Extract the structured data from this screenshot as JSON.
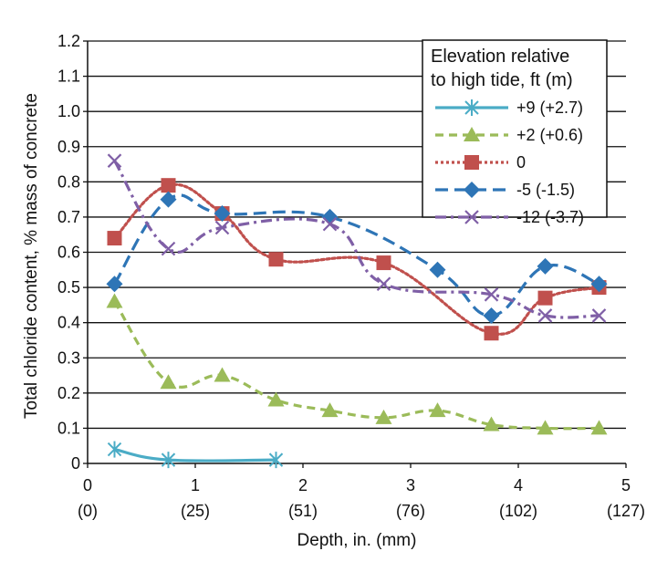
{
  "chart_data": {
    "type": "line",
    "title": "",
    "xlabel": "Depth, in. (mm)",
    "ylabel": "Total chloride content, % mass of concrete",
    "xlim": [
      0,
      5
    ],
    "ylim": [
      0,
      1.2
    ],
    "grid": "horizontal",
    "x_ticks": [
      {
        "value": 0,
        "label": "0",
        "sublabel": "(0)"
      },
      {
        "value": 1,
        "label": "1",
        "sublabel": "(25)"
      },
      {
        "value": 2,
        "label": "2",
        "sublabel": "(51)"
      },
      {
        "value": 3,
        "label": "3",
        "sublabel": "(76)"
      },
      {
        "value": 4,
        "label": "4",
        "sublabel": "(102)"
      },
      {
        "value": 5,
        "label": "5",
        "sublabel": "(127)"
      }
    ],
    "y_ticks": [
      {
        "value": 0,
        "label": "0"
      },
      {
        "value": 0.1,
        "label": "0.1"
      },
      {
        "value": 0.2,
        "label": "0.2"
      },
      {
        "value": 0.3,
        "label": "0.3"
      },
      {
        "value": 0.4,
        "label": "0.4"
      },
      {
        "value": 0.5,
        "label": "0.5"
      },
      {
        "value": 0.6,
        "label": "0.6"
      },
      {
        "value": 0.7,
        "label": "0.7"
      },
      {
        "value": 0.8,
        "label": "0.8"
      },
      {
        "value": 0.9,
        "label": "0.9"
      },
      {
        "value": 1.0,
        "label": "1.0"
      },
      {
        "value": 1.1,
        "label": "1.1"
      },
      {
        "value": 1.2,
        "label": "1.2"
      }
    ],
    "legend": {
      "title_line1": "Elevation relative",
      "title_line2": "to high tide, ft (m)",
      "placement": "top-right"
    },
    "series": [
      {
        "name": "+9 (+2.7)",
        "color": "#4bacc6",
        "dash": "solid",
        "marker": "asterisk",
        "x": [
          0.25,
          0.75,
          1.75
        ],
        "y": [
          0.04,
          0.01,
          0.01
        ]
      },
      {
        "name": "+2 (+0.6)",
        "color": "#9bbb59",
        "dash": "dashed",
        "marker": "triangle",
        "x": [
          0.25,
          0.75,
          1.25,
          1.75,
          2.25,
          2.75,
          3.25,
          3.75,
          4.25,
          4.75
        ],
        "y": [
          0.46,
          0.23,
          0.25,
          0.18,
          0.15,
          0.13,
          0.15,
          0.11,
          0.1,
          0.1
        ]
      },
      {
        "name": "0",
        "color": "#c0504d",
        "dash": "dotted",
        "marker": "square",
        "x": [
          0.25,
          0.75,
          1.25,
          1.75,
          2.75,
          3.75,
          4.25,
          4.75
        ],
        "y": [
          0.64,
          0.79,
          0.71,
          0.58,
          0.57,
          0.37,
          0.47,
          0.5
        ]
      },
      {
        "name": "-5 (-1.5)",
        "color": "#2e75b6",
        "dash": "longdash",
        "marker": "diamond",
        "x": [
          0.25,
          0.75,
          1.25,
          2.25,
          3.25,
          3.75,
          4.25,
          4.75
        ],
        "y": [
          0.51,
          0.75,
          0.71,
          0.7,
          0.55,
          0.42,
          0.56,
          0.51
        ]
      },
      {
        "name": "-12 (-3.7)",
        "color": "#7f5fa6",
        "dash": "dashdot",
        "marker": "x",
        "x": [
          0.25,
          0.75,
          1.25,
          2.25,
          2.75,
          3.75,
          4.25,
          4.75
        ],
        "y": [
          0.86,
          0.61,
          0.67,
          0.68,
          0.51,
          0.48,
          0.42,
          0.42
        ]
      }
    ]
  }
}
